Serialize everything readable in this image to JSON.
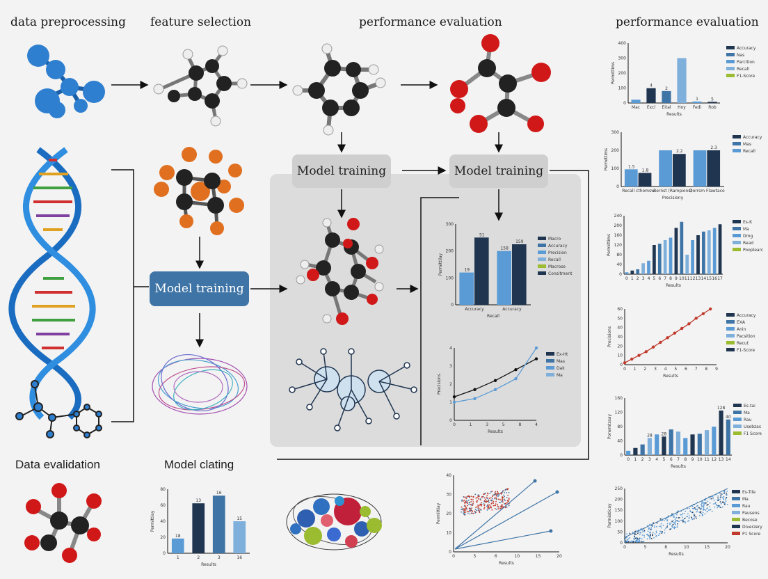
{
  "headings": {
    "data_preprocessing": "data preprocessing",
    "feature_selection": "feature selection",
    "performance_evaluation_center": "performance evaluation",
    "performance_evaluation_right": "performance evaluation",
    "data_evalidation": "Data evalidation",
    "model_clating": "Model clating"
  },
  "boxes": {
    "model_training_blue": "Model training",
    "model_training_grey_1": "Model training",
    "model_training_grey_2": "Model training"
  },
  "colors": {
    "dark_navy": "#1f3550",
    "mid_blue": "#3f74a6",
    "light_blue": "#5b9bd5",
    "pale_blue": "#7fb0dc",
    "green": "#9bbb30",
    "red": "#c0392b",
    "atom_blue": "#2f7fd0",
    "atom_dark": "#222222",
    "atom_orange": "#e07020"
  },
  "chart_data": [
    {
      "id": "right-1",
      "type": "bar",
      "categories": [
        "Mac",
        "Excl",
        "Eital",
        "Hoy",
        "Fedi",
        "Rob"
      ],
      "values": [
        22,
        99,
        80,
        300,
        10,
        8
      ],
      "data_labels": [
        "",
        "4",
        "2",
        "",
        "1",
        "5"
      ],
      "ylim": [
        0,
        400
      ],
      "yticks": [
        "0",
        "100",
        "200",
        "300",
        "400"
      ],
      "ylabel": "Permittims",
      "xlabel": "Results",
      "legend": [
        "Accuracy",
        "Nas",
        "Parcition",
        "Recall",
        "F1-Score"
      ]
    },
    {
      "id": "right-2",
      "type": "bar",
      "categories": [
        "Recall cthomsw",
        "Bernst (Rampions)",
        "Dorrsm Flawtaco"
      ],
      "series": [
        {
          "name": "Accuracy",
          "values": [
            95,
            200,
            200
          ]
        },
        {
          "name": "Mas",
          "values": [
            75,
            180,
            200
          ]
        }
      ],
      "data_labels": [
        "1.5",
        "1.8",
        "",
        "2.2",
        "",
        "2.3"
      ],
      "ylim": [
        0,
        300
      ],
      "yticks": [
        "0",
        "100",
        "200",
        "300"
      ],
      "ylabel": "Permittims",
      "xlabel": "Precisiony",
      "legend": [
        "Accuracy",
        "Mas",
        "Recall"
      ]
    },
    {
      "id": "right-3",
      "type": "bar",
      "categories": [
        "0",
        "1",
        "2",
        "3",
        "4",
        "5",
        "6",
        "7",
        "8",
        "9",
        "10",
        "11",
        "12",
        "13",
        "14",
        "15",
        "16",
        "17"
      ],
      "values": [
        8,
        15,
        20,
        45,
        55,
        120,
        125,
        140,
        150,
        190,
        215,
        80,
        140,
        160,
        175,
        180,
        190,
        205
      ],
      "ylim": [
        0,
        240
      ],
      "yticks": [
        "0",
        "40",
        "80",
        "120",
        "160",
        "200",
        "240"
      ],
      "ylabel": "Permittims",
      "xlabel": "Results",
      "legend": [
        "Es-K",
        "Ma",
        "Dmg",
        "Read",
        "Pooplearc"
      ]
    },
    {
      "id": "right-4",
      "type": "line",
      "x": [
        0,
        0.7,
        1.4,
        2.1,
        2.8,
        3.5,
        4.2,
        4.9,
        5.6,
        6.3,
        7,
        7.7,
        8.4
      ],
      "y": [
        2,
        6,
        10,
        14,
        19,
        24,
        29,
        34,
        39,
        44,
        50,
        55,
        60
      ],
      "ylim": [
        0,
        60
      ],
      "xlim": [
        0,
        9
      ],
      "yticks": [
        "0",
        "10",
        "20",
        "30",
        "40",
        "50",
        "60"
      ],
      "xticks": [
        "0",
        "1",
        "2",
        "3",
        "4",
        "5",
        "6",
        "7",
        "8",
        "9"
      ],
      "ylabel": "Precisions",
      "xlabel": "Results",
      "legend": [
        "Accuracy",
        "EXA",
        "Anin",
        "Pacsition",
        "Recut",
        "F1-Score"
      ]
    },
    {
      "id": "right-5",
      "type": "bar",
      "categories": [
        "0",
        "1",
        "2",
        "3",
        "4",
        "5",
        "6",
        "7",
        "8",
        "9",
        "10",
        "11",
        "12",
        "13",
        "14"
      ],
      "values": [
        12,
        20,
        30,
        48,
        58,
        52,
        72,
        66,
        48,
        58,
        60,
        70,
        80,
        125,
        100
      ],
      "data_labels": [
        "",
        "",
        "",
        "28",
        "",
        "28",
        "",
        "",
        "",
        "",
        "",
        "",
        "",
        "128",
        "40"
      ],
      "ylim": [
        0,
        160
      ],
      "yticks": [
        "0",
        "40",
        "80",
        "120",
        "160"
      ],
      "ylabel": "Porwmtssay",
      "xlabel": "Results",
      "legend": [
        "Es-tai",
        "Ma",
        "Rau",
        "Usebzas",
        "F1 Score"
      ]
    },
    {
      "id": "right-6",
      "type": "scatter",
      "n_points": 420,
      "trend_y": [
        0.1,
        1.0
      ],
      "xlim": [
        0,
        20
      ],
      "ylim": [
        0,
        250
      ],
      "xticks": [
        "0",
        "5",
        "8",
        "10",
        "15",
        "20"
      ],
      "yticks": [
        "0",
        "50",
        "100",
        "150",
        "200",
        "250"
      ],
      "ylabel": "Parmiaticay",
      "xlabel": "Results",
      "legend": [
        "Es-Tile",
        "Ma",
        "Rau",
        "Pausens",
        "Becose",
        "Diverzery",
        "P1 Score"
      ]
    },
    {
      "id": "center-bar",
      "type": "bar",
      "categories": [
        "Accuracy",
        "Accuracy"
      ],
      "series": [
        {
          "name": "Mas",
          "values": [
            120,
            200
          ]
        },
        {
          "name": "Macro",
          "values": [
            250,
            225
          ]
        }
      ],
      "data_labels": [
        "19",
        "51",
        "158",
        "159"
      ],
      "ylim": [
        0,
        300
      ],
      "yticks": [
        "0",
        "100",
        "200",
        "300"
      ],
      "ylabel": "Permittilay",
      "xlabel": "Recall",
      "legend": [
        "Macro",
        "Accuracy",
        "Precision",
        "Recall",
        "Macrose",
        "Consitment"
      ]
    },
    {
      "id": "center-line",
      "type": "line",
      "x": [
        0,
        1,
        2,
        3,
        4
      ],
      "series": [
        {
          "name": "Ex-Ht",
          "values": [
            1.3,
            1.7,
            2.2,
            2.8,
            3.4
          ]
        },
        {
          "name": "Mas",
          "values": [
            1.0,
            1.2,
            1.7,
            2.3,
            4.0
          ]
        }
      ],
      "xlim": [
        0,
        4
      ],
      "ylim": [
        0,
        4
      ],
      "xticks": [
        "0",
        "1",
        "3",
        "5",
        "8",
        "4"
      ],
      "yticks": [
        "0",
        "1",
        "2",
        "3",
        "4"
      ],
      "ylabel": "Precisions",
      "xlabel": "Results",
      "legend": [
        "Ex-Ht",
        "Mas",
        "Dak",
        "Ma"
      ]
    },
    {
      "id": "bottom-scatter",
      "type": "scatter",
      "n_points": 420,
      "xlim": [
        0,
        20
      ],
      "ylim": [
        0,
        40
      ],
      "xticks": [
        "0",
        "5",
        "6",
        "10",
        "15",
        "20"
      ],
      "yticks": [
        "0",
        "10",
        "20",
        "30",
        "40"
      ],
      "ylabel": "Permittiay",
      "xlabel": "Results"
    },
    {
      "id": "bottom-bar",
      "type": "bar",
      "categories": [
        "1",
        "2",
        "3",
        "16"
      ],
      "values": [
        23,
        78,
        90,
        50
      ],
      "data_labels": [
        "18",
        "13",
        "16",
        "15"
      ],
      "ylim": [
        0,
        100
      ],
      "yticks": [
        "0",
        "20",
        "40",
        "60",
        "80"
      ],
      "ylabel": "Permittiay",
      "xlabel": "Results"
    }
  ]
}
